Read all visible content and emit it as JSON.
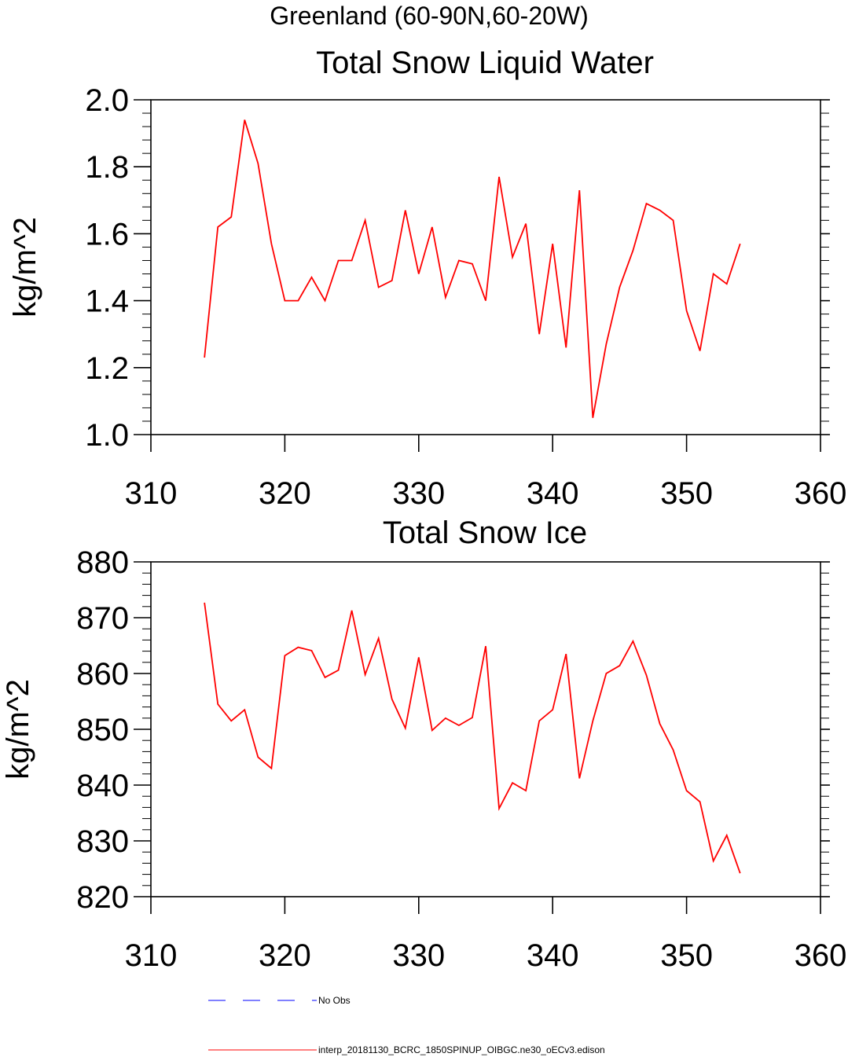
{
  "figure": {
    "supertitle": "Greenland (60-90N,60-20W)"
  },
  "chart_data": [
    {
      "type": "line",
      "title": "Total Snow Liquid Water",
      "xlabel": "",
      "ylabel": "kg/m^2",
      "xlim": [
        310,
        360
      ],
      "ylim": [
        1.0,
        2.0
      ],
      "xticks": [
        "310",
        "320",
        "330",
        "340",
        "350",
        "360"
      ],
      "yticks": [
        "1.0",
        "1.2",
        "1.4",
        "1.6",
        "1.8",
        "2.0"
      ],
      "x": [
        314,
        315,
        316,
        317,
        318,
        319,
        320,
        321,
        322,
        323,
        324,
        325,
        326,
        327,
        328,
        329,
        330,
        331,
        332,
        333,
        334,
        335,
        336,
        337,
        338,
        339,
        340,
        341,
        342,
        343,
        344,
        345,
        346,
        347,
        348,
        349,
        350,
        351,
        352,
        353,
        354
      ],
      "series": [
        {
          "name": "interp_20181130_BCRC_1850SPINUP_OIBGC.ne30_oECv3.edison",
          "color": "#ff0000",
          "values": [
            1.23,
            1.62,
            1.65,
            1.94,
            1.81,
            1.57,
            1.4,
            1.4,
            1.47,
            1.4,
            1.52,
            1.52,
            1.64,
            1.44,
            1.46,
            1.67,
            1.48,
            1.62,
            1.41,
            1.52,
            1.51,
            1.4,
            1.77,
            1.53,
            1.63,
            1.3,
            1.57,
            1.26,
            1.73,
            1.05,
            1.27,
            1.44,
            1.55,
            1.69,
            1.67,
            1.64,
            1.37,
            1.25,
            1.48,
            1.45,
            1.57
          ]
        }
      ]
    },
    {
      "type": "line",
      "title": "Total Snow Ice",
      "xlabel": "",
      "ylabel": "kg/m^2",
      "xlim": [
        310,
        360
      ],
      "ylim": [
        820,
        880
      ],
      "xticks": [
        "310",
        "320",
        "330",
        "340",
        "350",
        "360"
      ],
      "yticks": [
        "820",
        "830",
        "840",
        "850",
        "860",
        "870",
        "880"
      ],
      "x": [
        314,
        315,
        316,
        317,
        318,
        319,
        320,
        321,
        322,
        323,
        324,
        325,
        326,
        327,
        328,
        329,
        330,
        331,
        332,
        333,
        334,
        335,
        336,
        337,
        338,
        339,
        340,
        341,
        342,
        343,
        344,
        345,
        346,
        347,
        348,
        349,
        350,
        351,
        352,
        353,
        354
      ],
      "series": [
        {
          "name": "interp_20181130_BCRC_1850SPINUP_OIBGC.ne30_oECv3.edison",
          "color": "#ff0000",
          "values": [
            872.7,
            854.5,
            851.5,
            853.5,
            845.0,
            843.0,
            863.2,
            864.7,
            864.1,
            859.3,
            860.6,
            871.3,
            859.8,
            866.3,
            855.4,
            850.2,
            862.9,
            849.8,
            852.0,
            850.7,
            852.1,
            864.9,
            835.8,
            840.4,
            839.0,
            851.5,
            853.5,
            863.5,
            841.2,
            851.5,
            860.0,
            861.4,
            865.8,
            859.7,
            851.0,
            846.3,
            839.0,
            837.0,
            826.4,
            831.0,
            824.2
          ]
        }
      ]
    }
  ],
  "legend": {
    "placement": "bottom",
    "items": [
      {
        "label": "No Obs",
        "color": "#0000ff",
        "style": "dashed"
      },
      {
        "label": "interp_20181130_BCRC_1850SPINUP_OIBGC.ne30_oECv3.edison",
        "color": "#ff0000",
        "style": "solid"
      }
    ]
  }
}
